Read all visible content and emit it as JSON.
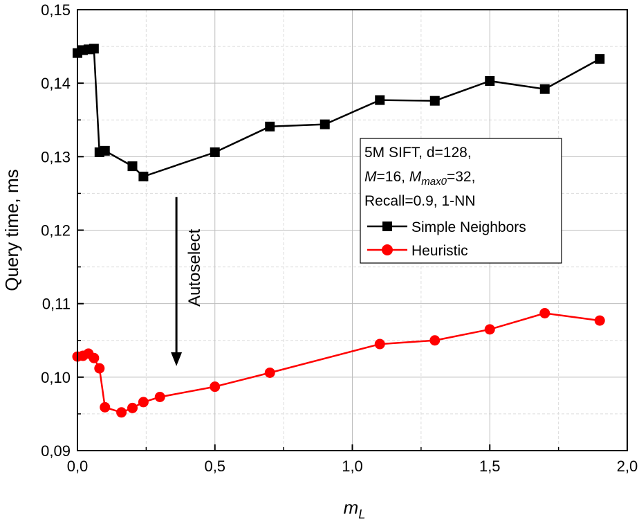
{
  "chart_data": {
    "type": "line",
    "xlabel": "m",
    "xlabel_sub": "L",
    "ylabel": "Query time, ms",
    "xlim": [
      0.0,
      2.0
    ],
    "ylim": [
      0.09,
      0.15
    ],
    "x_ticks": [
      0.0,
      0.5,
      1.0,
      1.5,
      2.0
    ],
    "x_tick_labels": [
      "0,0",
      "0,5",
      "1,0",
      "1,5",
      "2,0"
    ],
    "y_ticks": [
      0.09,
      0.1,
      0.11,
      0.12,
      0.13,
      0.14,
      0.15
    ],
    "y_tick_labels": [
      "0,09",
      "0,10",
      "0,11",
      "0,12",
      "0,13",
      "0,14",
      "0,15"
    ],
    "grid": true,
    "minor_grid": true,
    "legend_placement": "center-right",
    "info_lines": {
      "line1": "5M SIFT, d=128,",
      "line2_a": "M",
      "line2_b": "=16, ",
      "line2_c": "M",
      "line2_sub": "max0",
      "line2_d": "=32,",
      "line3": "Recall=0.9, 1-NN"
    },
    "annotation": {
      "text": "Autoselect",
      "x": 0.36,
      "y_from": 0.1245,
      "y_to": 0.1015
    },
    "series": [
      {
        "name": "Simple Neighbors",
        "color": "#000000",
        "marker": "square",
        "x": [
          0.0,
          0.02,
          0.04,
          0.06,
          0.08,
          0.1,
          0.2,
          0.24,
          0.5,
          0.7,
          0.9,
          1.1,
          1.3,
          1.5,
          1.7,
          1.9
        ],
        "y": [
          0.1441,
          0.1445,
          0.1446,
          0.1447,
          0.1306,
          0.1308,
          0.1287,
          0.1273,
          0.1306,
          0.1341,
          0.1344,
          0.1377,
          0.1376,
          0.1403,
          0.1392,
          0.1433
        ]
      },
      {
        "name": "Heuristic",
        "color": "#ff0000",
        "marker": "circle",
        "x": [
          0.0,
          0.02,
          0.04,
          0.06,
          0.08,
          0.1,
          0.16,
          0.2,
          0.24,
          0.3,
          0.5,
          0.7,
          1.1,
          1.3,
          1.5,
          1.7,
          1.9
        ],
        "y": [
          0.1028,
          0.1029,
          0.1032,
          0.1026,
          0.1012,
          0.0959,
          0.0952,
          0.0958,
          0.0966,
          0.0973,
          0.0987,
          0.1006,
          0.1045,
          0.105,
          0.1065,
          0.1087,
          0.1077
        ]
      }
    ]
  }
}
